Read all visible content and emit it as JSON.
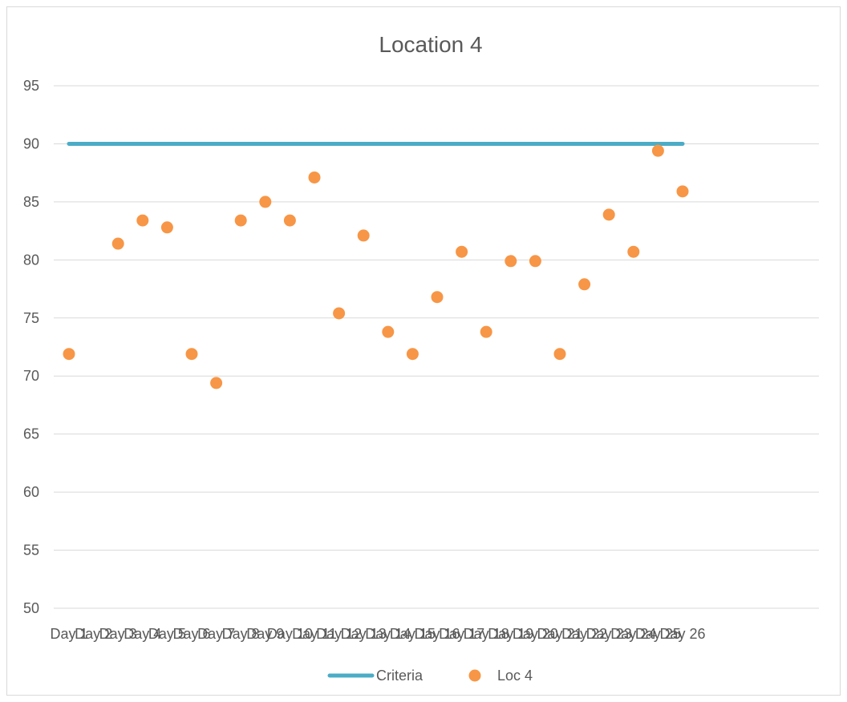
{
  "chart_data": {
    "type": "scatter",
    "title": "Location 4",
    "xlabel": "",
    "ylabel": "",
    "ylim": [
      50,
      95
    ],
    "yticks": [
      50,
      55,
      60,
      65,
      70,
      75,
      80,
      85,
      90,
      95
    ],
    "categories": [
      "Day 1",
      "Day 2",
      "Day 3",
      "Day 4",
      "Day 5",
      "Day 6",
      "Day 7",
      "Day 8",
      "Day 9",
      "Day 10",
      "Day 11",
      "Day 12",
      "Day 13",
      "Day 14",
      "Day 15",
      "Day 16",
      "Day 17",
      "Day 18",
      "Day 19",
      "Day 20",
      "Day 21",
      "Day 22",
      "Day 23",
      "Day 24",
      "Day 25",
      "Day 26"
    ],
    "grid": true,
    "legend_position": "bottom",
    "series": [
      {
        "name": "Criteria",
        "kind": "line",
        "color": "#4bacc6",
        "values": [
          90,
          90,
          90,
          90,
          90,
          90,
          90,
          90,
          90,
          90,
          90,
          90,
          90,
          90,
          90,
          90,
          90,
          90,
          90,
          90,
          90,
          90,
          90,
          90,
          90,
          90
        ]
      },
      {
        "name": "Loc 4",
        "kind": "marker",
        "color": "#f79646",
        "values": [
          71.9,
          null,
          81.4,
          83.4,
          82.8,
          71.9,
          69.4,
          83.4,
          85.0,
          83.4,
          87.1,
          75.4,
          82.1,
          73.8,
          71.9,
          76.8,
          80.7,
          73.8,
          79.9,
          79.9,
          71.9,
          77.9,
          83.9,
          80.7,
          89.4,
          85.9
        ]
      }
    ]
  }
}
